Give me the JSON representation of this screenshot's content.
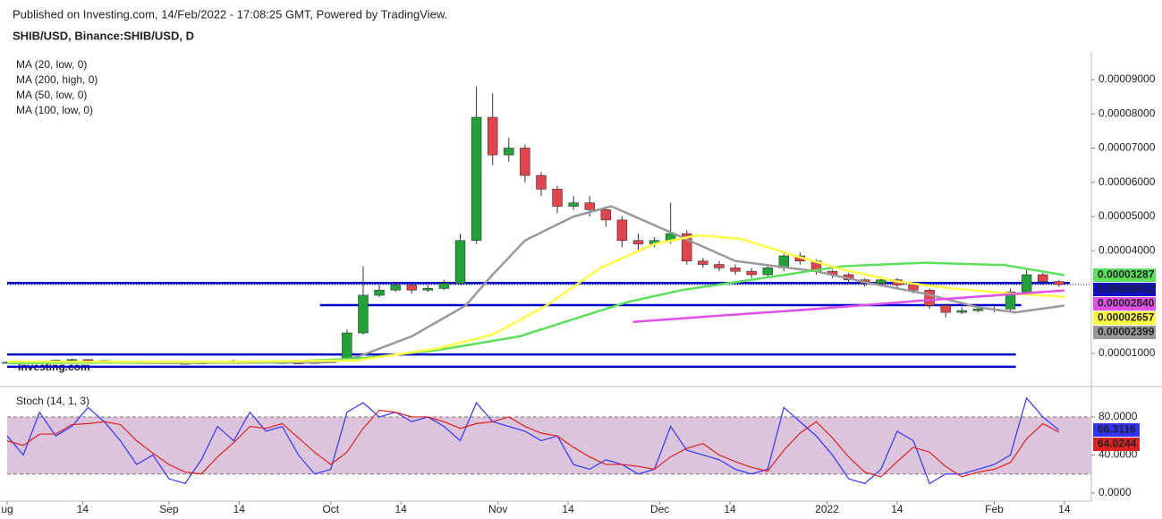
{
  "header": {
    "published": "Published on Investing.com, 14/Feb/2022 - 17:08:25 GMT, Powered by TradingView.",
    "symbol": "SHIB/USD, Binance:SHIB/USD, D",
    "watermark": "Investing.com"
  },
  "chart_data": [
    {
      "type": "candlestick",
      "xlim": [
        0,
        201
      ],
      "ylim": [
        1.37e-06,
        9.81e-05
      ],
      "xticks": [
        {
          "value": 0,
          "label": "ug"
        },
        14,
        {
          "value": 30,
          "label": "Sep"
        },
        {
          "value": 43,
          "label": "14"
        },
        {
          "value": 60,
          "label": "Oct"
        },
        {
          "value": 73,
          "label": "14"
        },
        {
          "value": 91,
          "label": "Nov"
        },
        {
          "value": 104,
          "label": "14"
        },
        {
          "value": 121,
          "label": "Dec"
        },
        {
          "value": 134,
          "label": "14"
        },
        {
          "value": 152,
          "label": "2022"
        },
        {
          "value": 165,
          "label": "14"
        },
        {
          "value": 183,
          "label": "Feb"
        },
        {
          "value": 196,
          "label": "14"
        }
      ],
      "yticks": [
        {
          "value": 1e-05,
          "label": "0.00001000"
        },
        {
          "value": 4e-05,
          "label": "0.00004000"
        },
        {
          "value": 5e-05,
          "label": "0.00005000"
        },
        {
          "value": 6e-05,
          "label": "0.00006000"
        },
        {
          "value": 7e-05,
          "label": "0.00007000"
        },
        {
          "value": 8e-05,
          "label": "0.00008000"
        },
        {
          "value": 9e-05,
          "label": "0.00009000"
        }
      ],
      "up_color": "#22a33a",
      "down_color": "#e3434b",
      "x": [
        0,
        3,
        6,
        9,
        12,
        15,
        18,
        21,
        24,
        27,
        30,
        33,
        36,
        39,
        42,
        45,
        48,
        51,
        54,
        57,
        60,
        63,
        66,
        69,
        72,
        75,
        78,
        81,
        84,
        87,
        90,
        93,
        96,
        99,
        102,
        105,
        108,
        111,
        114,
        117,
        120,
        123,
        126,
        129,
        132,
        135,
        138,
        141,
        144,
        147,
        150,
        153,
        156,
        159,
        162,
        165,
        168,
        171,
        174,
        177,
        180,
        183,
        186,
        189,
        192,
        195
      ],
      "open": [
        7.3e-06,
        7.4e-06,
        7.6e-06,
        7.8e-06,
        8e-06,
        8.2e-06,
        7.9e-06,
        7.6e-06,
        7.5e-06,
        7.3e-06,
        7.2e-06,
        7.1e-06,
        7e-06,
        7.2e-06,
        7.4e-06,
        7.8e-06,
        7.5e-06,
        7.3e-06,
        7.2e-06,
        7.1e-06,
        7.3e-06,
        7.8e-06,
        1.6e-05,
        2.7e-05,
        2.85e-05,
        3e-05,
        2.85e-05,
        2.9e-05,
        3.05e-05,
        4.3e-05,
        7.9e-05,
        6.8e-05,
        7e-05,
        6.2e-05,
        5.8e-05,
        5.3e-05,
        5.4e-05,
        5.2e-05,
        4.9e-05,
        4.3e-05,
        4.2e-05,
        4.3e-05,
        4.5e-05,
        3.7e-05,
        3.6e-05,
        3.5e-05,
        3.4e-05,
        3.3e-05,
        3.5e-05,
        3.85e-05,
        3.7e-05,
        3.4e-05,
        3.3e-05,
        3.15e-05,
        3.05e-05,
        3.15e-05,
        3e-05,
        2.85e-05,
        2.4e-05,
        2.2e-05,
        2.25e-05,
        2.3e-05,
        2.3e-05,
        2.8e-05,
        3.3e-05,
        3.1e-05
      ],
      "high": [
        7.7e-06,
        7.8e-06,
        8e-06,
        8.2e-06,
        8.5e-06,
        8.3e-06,
        8e-06,
        7.8e-06,
        7.6e-06,
        7.5e-06,
        7.4e-06,
        7.3e-06,
        7.4e-06,
        7.6e-06,
        8.2e-06,
        7.9e-06,
        7.7e-06,
        7.5e-06,
        7.4e-06,
        7.5e-06,
        8.2e-06,
        1.7e-05,
        3.55e-05,
        3e-05,
        3.1e-05,
        3.05e-05,
        3e-05,
        3.15e-05,
        4.5e-05,
        8.8e-05,
        8.6e-05,
        7.3e-05,
        7.1e-05,
        6.3e-05,
        5.9e-05,
        5.6e-05,
        5.6e-05,
        5.3e-05,
        5e-05,
        4.5e-05,
        4.4e-05,
        5.4e-05,
        4.6e-05,
        3.8e-05,
        3.7e-05,
        3.6e-05,
        3.5e-05,
        3.6e-05,
        3.95e-05,
        3.95e-05,
        3.75e-05,
        3.45e-05,
        3.35e-05,
        3.2e-05,
        3.25e-05,
        3.2e-05,
        3.05e-05,
        2.9e-05,
        2.45e-05,
        2.35e-05,
        2.4e-05,
        2.4e-05,
        2.9e-05,
        3.45e-05,
        3.35e-05,
        3.15e-05
      ],
      "low": [
        7.1e-06,
        7.2e-06,
        7.4e-06,
        7.6e-06,
        7.8e-06,
        7.7e-06,
        7.4e-06,
        7.2e-06,
        7.1e-06,
        7e-06,
        6.9e-06,
        6.8e-06,
        6.9e-06,
        7.1e-06,
        7.2e-06,
        7.3e-06,
        7.1e-06,
        7e-06,
        6.9e-06,
        7e-06,
        7.2e-06,
        7.6e-06,
        1.55e-05,
        2.65e-05,
        2.8e-05,
        2.75e-05,
        2.8e-05,
        2.85e-05,
        3e-05,
        4.2e-05,
        6.5e-05,
        6.6e-05,
        6e-05,
        5.6e-05,
        5.1e-05,
        5.2e-05,
        5e-05,
        4.7e-05,
        4.1e-05,
        4e-05,
        4.1e-05,
        4.2e-05,
        3.6e-05,
        3.5e-05,
        3.4e-05,
        3.3e-05,
        3.2e-05,
        3.25e-05,
        3.4e-05,
        3.6e-05,
        3.3e-05,
        3.2e-05,
        3.05e-05,
        2.95e-05,
        3e-05,
        2.9e-05,
        2.75e-05,
        2.3e-05,
        2.05e-05,
        2.15e-05,
        2.2e-05,
        2.2e-05,
        2.25e-05,
        2.75e-05,
        3e-05,
        2.95e-05
      ],
      "close": [
        7.4e-06,
        7.6e-06,
        7.8e-06,
        8e-06,
        8.2e-06,
        7.9e-06,
        7.6e-06,
        7.5e-06,
        7.3e-06,
        7.2e-06,
        7.1e-06,
        7e-06,
        7.2e-06,
        7.4e-06,
        7.8e-06,
        7.5e-06,
        7.3e-06,
        7.2e-06,
        7.1e-06,
        7.3e-06,
        7.8e-06,
        1.6e-05,
        2.7e-05,
        2.85e-05,
        3e-05,
        2.85e-05,
        2.9e-05,
        3.05e-05,
        4.3e-05,
        7.9e-05,
        6.8e-05,
        7e-05,
        6.2e-05,
        5.8e-05,
        5.3e-05,
        5.4e-05,
        5.2e-05,
        4.9e-05,
        4.3e-05,
        4.2e-05,
        4.3e-05,
        4.5e-05,
        3.7e-05,
        3.6e-05,
        3.5e-05,
        3.4e-05,
        3.3e-05,
        3.5e-05,
        3.85e-05,
        3.7e-05,
        3.4e-05,
        3.3e-05,
        3.15e-05,
        3.05e-05,
        3.15e-05,
        3e-05,
        2.85e-05,
        2.4e-05,
        2.2e-05,
        2.25e-05,
        2.3e-05,
        2.3e-05,
        2.8e-05,
        3.3e-05,
        3.1e-05,
        3.012e-05
      ],
      "close_label": "0.00003012",
      "close_color": "#1010c0",
      "moving_averages": [
        {
          "name": "MA (20, low, 0)",
          "color": "#999999",
          "last_label": "0.00002399",
          "x": [
            0,
            30,
            60,
            65,
            75,
            85,
            90,
            96,
            105,
            112,
            125,
            135,
            150,
            160,
            170,
            180,
            187,
            196
          ],
          "values": [
            7.5e-06,
            7.2e-06,
            7.4e-06,
            9e-06,
            1.5e-05,
            2.4e-05,
            3.3e-05,
            4.3e-05,
            5e-05,
            5.3e-05,
            4.4e-05,
            3.7e-05,
            3.4e-05,
            3.05e-05,
            2.75e-05,
            2.35e-05,
            2.2e-05,
            2.399e-05
          ]
        },
        {
          "name": "MA (200, high, 0)",
          "color": "#5ce05c",
          "last_label": "0.00003287",
          "x": [
            0,
            50,
            65,
            80,
            95,
            105,
            115,
            125,
            140,
            155,
            170,
            185,
            196
          ],
          "values": [
            7.2e-06,
            7.5e-06,
            8.5e-06,
            1.1e-05,
            1.5e-05,
            2e-05,
            2.5e-05,
            2.85e-05,
            3.2e-05,
            3.55e-05,
            3.65e-05,
            3.58e-05,
            3.287e-05
          ]
        },
        {
          "name": "MA (50, low, 0)",
          "color": "#ffff44",
          "last_label": "0.00002657",
          "x": [
            0,
            40,
            65,
            80,
            90,
            100,
            110,
            120,
            128,
            136,
            145,
            155,
            165,
            175,
            186,
            196
          ],
          "values": [
            7.6e-06,
            7.5e-06,
            8e-06,
            1.15e-05,
            1.55e-05,
            2.4e-05,
            3.5e-05,
            4.2e-05,
            4.45e-05,
            4.35e-05,
            3.9e-05,
            3.45e-05,
            3.1e-05,
            2.9e-05,
            2.75e-05,
            2.657e-05
          ]
        },
        {
          "name": "MA (100, low, 0)",
          "color": "#e050e8",
          "last_label": "0.00002840",
          "x": [
            116,
            130,
            150,
            170,
            196
          ],
          "values": [
            1.92e-05,
            2.08e-05,
            2.3e-05,
            2.55e-05,
            2.84e-05
          ]
        }
      ],
      "lines": [
        {
          "color": "#0000cc",
          "x": [
            0,
            197
          ],
          "y": 3.06e-05
        },
        {
          "color": "#0000cc",
          "x": [
            58,
            188
          ],
          "y": 2.41e-05
        },
        {
          "color": "#0000cc",
          "x": [
            0,
            187
          ],
          "y": 9.7e-06
        },
        {
          "color": "#0000cc",
          "x": [
            0,
            187
          ],
          "y": 6.1e-06
        }
      ]
    },
    {
      "type": "line",
      "title": "Stoch (14, 1, 3)",
      "xlim": [
        0,
        201
      ],
      "ylim": [
        -8.5,
        111
      ],
      "yticks": [
        {
          "value": 0,
          "label": "0.0000"
        },
        {
          "value": 40,
          "label": "40.0000"
        },
        {
          "value": 80,
          "label": "80.0000"
        }
      ],
      "bands": [
        20,
        80
      ],
      "band_color": "#dcc4dc",
      "x": [
        0,
        3,
        6,
        9,
        12,
        15,
        18,
        21,
        24,
        27,
        30,
        33,
        36,
        39,
        42,
        45,
        48,
        51,
        54,
        57,
        60,
        63,
        66,
        69,
        72,
        75,
        78,
        81,
        84,
        87,
        90,
        93,
        96,
        99,
        102,
        105,
        108,
        111,
        114,
        117,
        120,
        123,
        126,
        129,
        132,
        135,
        138,
        141,
        144,
        147,
        150,
        153,
        156,
        159,
        162,
        165,
        168,
        171,
        174,
        177,
        180,
        183,
        186,
        189,
        192,
        195
      ],
      "series": [
        {
          "color": "#3333ff",
          "values": [
            60,
            40,
            85,
            60,
            70,
            90,
            75,
            55,
            30,
            40,
            15,
            10,
            35,
            70,
            55,
            85,
            65,
            70,
            40,
            20,
            25,
            85,
            95,
            80,
            85,
            75,
            80,
            70,
            55,
            95,
            75,
            70,
            65,
            55,
            60,
            30,
            25,
            35,
            30,
            20,
            25,
            70,
            45,
            40,
            35,
            25,
            20,
            25,
            90,
            75,
            60,
            40,
            15,
            10,
            25,
            65,
            55,
            10,
            20,
            20,
            25,
            30,
            40,
            100,
            80,
            66.3116
          ]
        },
        {
          "color": "#dd2222",
          "values": [
            55,
            50,
            62,
            62,
            72,
            73,
            75,
            72,
            55,
            42,
            30,
            22,
            20,
            38,
            53,
            70,
            68,
            73,
            58,
            43,
            30,
            43,
            68,
            87,
            85,
            80,
            80,
            75,
            68,
            73,
            75,
            80,
            70,
            63,
            60,
            48,
            38,
            30,
            30,
            28,
            25,
            38,
            47,
            52,
            40,
            33,
            27,
            23,
            45,
            63,
            75,
            58,
            38,
            22,
            17,
            33,
            48,
            43,
            28,
            17,
            22,
            25,
            32,
            57,
            73,
            64.0244
          ]
        }
      ]
    }
  ]
}
